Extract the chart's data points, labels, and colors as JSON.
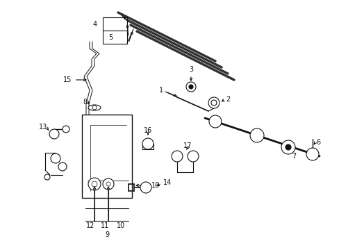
{
  "background_color": "#ffffff",
  "fig_width": 4.89,
  "fig_height": 3.6,
  "dpi": 100,
  "line_color": "#111111",
  "label_fontsize": 7.0
}
